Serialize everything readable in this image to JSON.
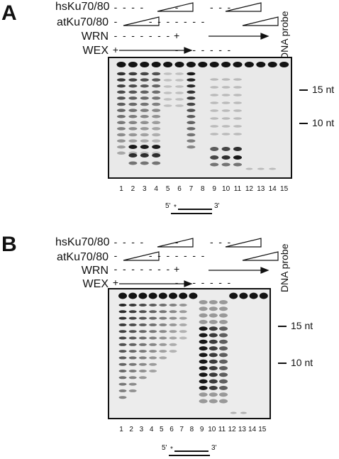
{
  "panels": [
    {
      "letter": "A",
      "rows": [
        {
          "label": "hsKu70/80",
          "symbols": [
            "-",
            "-",
            "-",
            "-",
            "",
            "",
            "",
            "-",
            "",
            "",
            "",
            "-",
            "-",
            "-"
          ]
        },
        {
          "label": "atKu70/80",
          "symbols": [
            "-",
            "",
            "",
            "",
            "-",
            "-",
            "-",
            "-",
            "-",
            "-",
            "-",
            "",
            "",
            ""
          ]
        },
        {
          "label": "WRN",
          "symbols": [
            "-",
            "-",
            "-",
            "-",
            "-",
            "-",
            "-",
            "+",
            "",
            "",
            "",
            "",
            "",
            ""
          ]
        },
        {
          "label": "WEX",
          "symbols": [
            "+",
            "",
            "",
            "",
            "",
            "",
            "",
            "-",
            "-",
            "-",
            "-",
            "-",
            "-",
            "-"
          ]
        }
      ],
      "probe_label": "DNA probe",
      "markers": [
        "15 nt",
        "10 nt"
      ],
      "lanes": [
        "1",
        "2",
        "3",
        "4",
        "5",
        "6",
        "7",
        "8",
        "9",
        "10",
        "11",
        "12",
        "13",
        "14",
        "15"
      ],
      "substrate": {
        "five": "5'",
        "star": "*",
        "three": "3'"
      }
    },
    {
      "letter": "B",
      "rows": [
        {
          "label": "hsKu70/80",
          "symbols": [
            "-",
            "-",
            "-",
            "-",
            "",
            "",
            "",
            "-",
            "",
            "",
            "",
            "-",
            "-",
            "-"
          ]
        },
        {
          "label": "atKu70/80",
          "symbols": [
            "-",
            "",
            "",
            "",
            "-",
            "-",
            "-",
            "-",
            "-",
            "-",
            "-",
            "",
            "",
            ""
          ]
        },
        {
          "label": "WRN",
          "symbols": [
            "-",
            "-",
            "-",
            "-",
            "-",
            "-",
            "-",
            "+",
            "",
            "",
            "",
            "",
            "",
            ""
          ]
        },
        {
          "label": "WEX",
          "symbols": [
            "+",
            "",
            "",
            "",
            "",
            "",
            "",
            "-",
            "-",
            "-",
            "-",
            "-",
            "-",
            "-"
          ]
        }
      ],
      "probe_label": "DNA probe",
      "markers": [
        "15 nt",
        "10 nt"
      ],
      "lanes": [
        "1",
        "2",
        "3",
        "4",
        "5",
        "6",
        "7",
        "8",
        "9",
        "10",
        "11",
        "12",
        "13",
        "14",
        "15"
      ],
      "substrate": {
        "five": "5'",
        "star": "*",
        "three": "3'"
      }
    }
  ]
}
